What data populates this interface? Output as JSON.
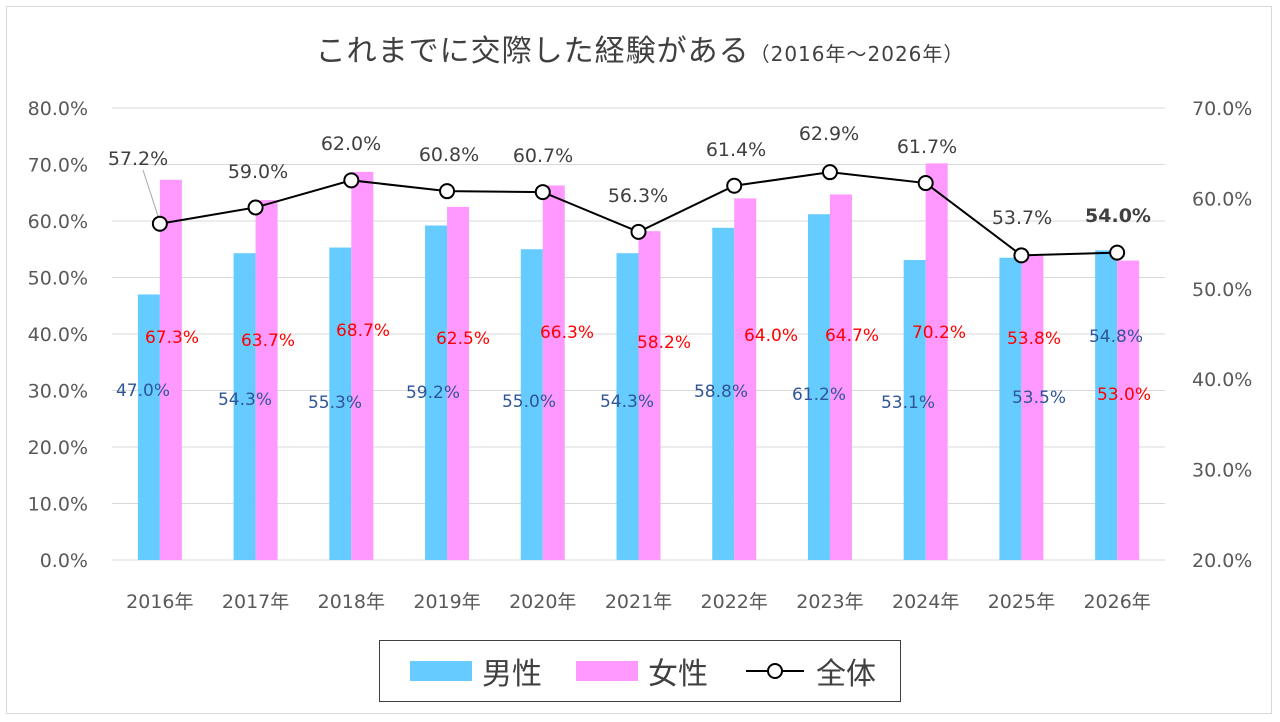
{
  "title": {
    "main": "これまでに交際した経験がある",
    "sub": "（2016年～2026年）"
  },
  "legend": {
    "male": "男性",
    "female": "女性",
    "total": "全体"
  },
  "colors": {
    "male": "#66ccff",
    "female": "#ff99ff",
    "line": "#000000",
    "male_label": "#2f5597",
    "female_label": "#ff0000",
    "grid": "#d9d9d9"
  },
  "chart_data": {
    "type": "bar",
    "combo": "bar+line (line on secondary axis)",
    "categories": [
      "2016年",
      "2017年",
      "2018年",
      "2019年",
      "2020年",
      "2021年",
      "2022年",
      "2023年",
      "2024年",
      "2025年",
      "2026年"
    ],
    "series": [
      {
        "name": "男性",
        "type": "bar",
        "axis": "left",
        "values": [
          47.0,
          54.3,
          55.3,
          59.2,
          55.0,
          54.3,
          58.8,
          61.2,
          53.1,
          53.5,
          54.8
        ],
        "labels": [
          "47.0%",
          "54.3%",
          "55.3%",
          "59.2%",
          "55.0%",
          "54.3%",
          "58.8%",
          "61.2%",
          "53.1%",
          "53.5%",
          "54.8%"
        ]
      },
      {
        "name": "女性",
        "type": "bar",
        "axis": "left",
        "values": [
          67.3,
          63.7,
          68.7,
          62.5,
          66.3,
          58.2,
          64.0,
          64.7,
          70.2,
          53.8,
          53.0
        ],
        "labels": [
          "67.3%",
          "63.7%",
          "68.7%",
          "62.5%",
          "66.3%",
          "58.2%",
          "64.0%",
          "64.7%",
          "70.2%",
          "53.8%",
          "53.0%"
        ]
      },
      {
        "name": "全体",
        "type": "line",
        "axis": "right",
        "values": [
          57.2,
          59.0,
          62.0,
          60.8,
          60.7,
          56.3,
          61.4,
          62.9,
          61.7,
          53.7,
          54.0
        ],
        "labels": [
          "57.2%",
          "59.0%",
          "62.0%",
          "60.8%",
          "60.7%",
          "56.3%",
          "61.4%",
          "62.9%",
          "61.7%",
          "53.7%",
          "54.0%"
        ]
      }
    ],
    "ylim": [
      0,
      80
    ],
    "y_ticks": [
      "0.0%",
      "10.0%",
      "20.0%",
      "30.0%",
      "40.0%",
      "50.0%",
      "60.0%",
      "70.0%",
      "80.0%"
    ],
    "y2lim": [
      20,
      70
    ],
    "y2_ticks": [
      "20.0%",
      "30.0%",
      "40.0%",
      "50.0%",
      "60.0%",
      "70.0%"
    ],
    "grid": true,
    "legend_position": "bottom"
  }
}
